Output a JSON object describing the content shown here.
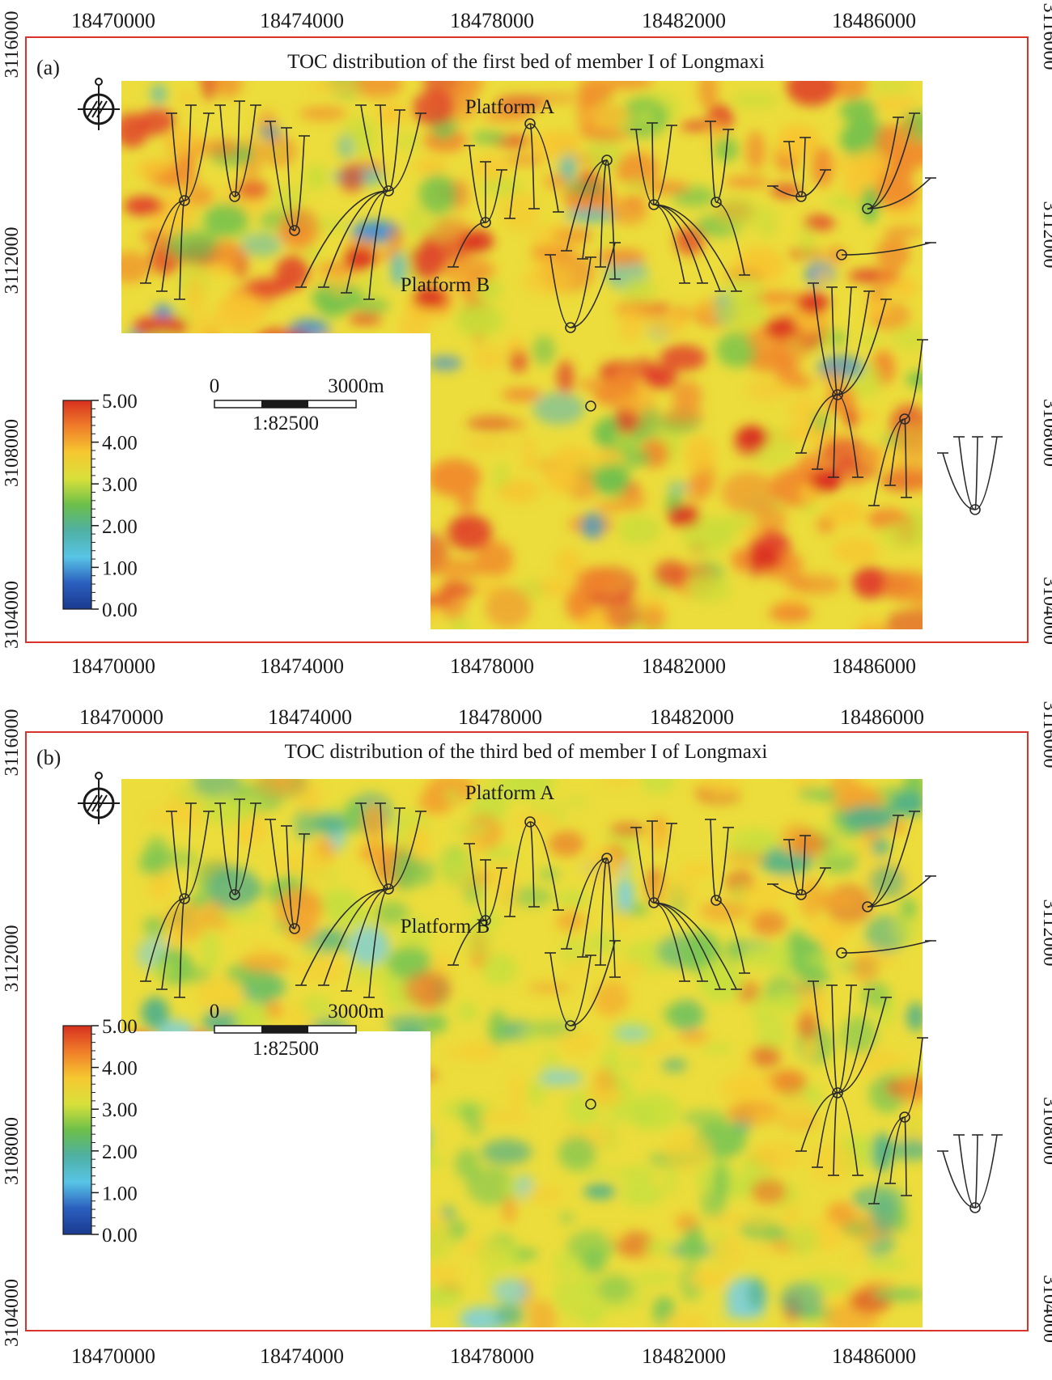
{
  "panels": [
    {
      "label": "(a)",
      "title": "TOC distribution of the first bed of member I of Longmaxi",
      "x_ticks_top": [
        "18470000",
        "18474000",
        "18478000",
        "18482000",
        "18486000"
      ],
      "x_ticks_bottom": [
        "18470000",
        "18474000",
        "18478000",
        "18482000",
        "18486000"
      ],
      "y_ticks_left": [
        "3116000",
        "3112000",
        "3108000",
        "3104000"
      ],
      "y_ticks_right": [
        "3116000",
        "3112000",
        "3108000",
        "3104000"
      ],
      "platform_a": "Platform A",
      "platform_b": "Platform B",
      "scale": {
        "zero": "0",
        "length": "3000m",
        "ratio": "1:82500"
      },
      "legend": {
        "labels": [
          "5.00",
          "4.00",
          "3.00",
          "2.00",
          "1.00",
          "0.00"
        ],
        "min": 0,
        "max": 5
      },
      "toc_level": "high",
      "frame_color": "#d9342b"
    },
    {
      "label": "(b)",
      "title": "TOC distribution of the third bed of member I of Longmaxi",
      "x_ticks_top": [
        "18470000",
        "18474000",
        "18478000",
        "18482000",
        "18486000"
      ],
      "x_ticks_bottom": [
        "18470000",
        "18474000",
        "18478000",
        "18482000",
        "18486000"
      ],
      "y_ticks_left": [
        "3116000",
        "3112000",
        "3108000",
        "3104000"
      ],
      "y_ticks_right": [
        "3116000",
        "3112000",
        "3108000",
        "3104000"
      ],
      "platform_a": "Platform A",
      "platform_b": "Platform B",
      "scale": {
        "zero": "0",
        "length": "3000m",
        "ratio": "1:82500"
      },
      "legend": {
        "labels": [
          "5.00",
          "4.00",
          "3.00",
          "2.00",
          "1.00",
          "0.00"
        ],
        "min": 0,
        "max": 5
      },
      "toc_level": "moderate",
      "frame_color": "#d9342b"
    }
  ],
  "colors": {
    "colorbar": [
      "#d7301f",
      "#f07e2a",
      "#f6c830",
      "#d8e03a",
      "#6cbf4a",
      "#4fb0a4",
      "#58c4e6",
      "#2b5fbf",
      "#1a3a8f"
    ],
    "map_base": "#ecdd3c",
    "well_path": "#2a2a2a"
  },
  "icons": {
    "north_arrow": "compass-north-icon"
  }
}
